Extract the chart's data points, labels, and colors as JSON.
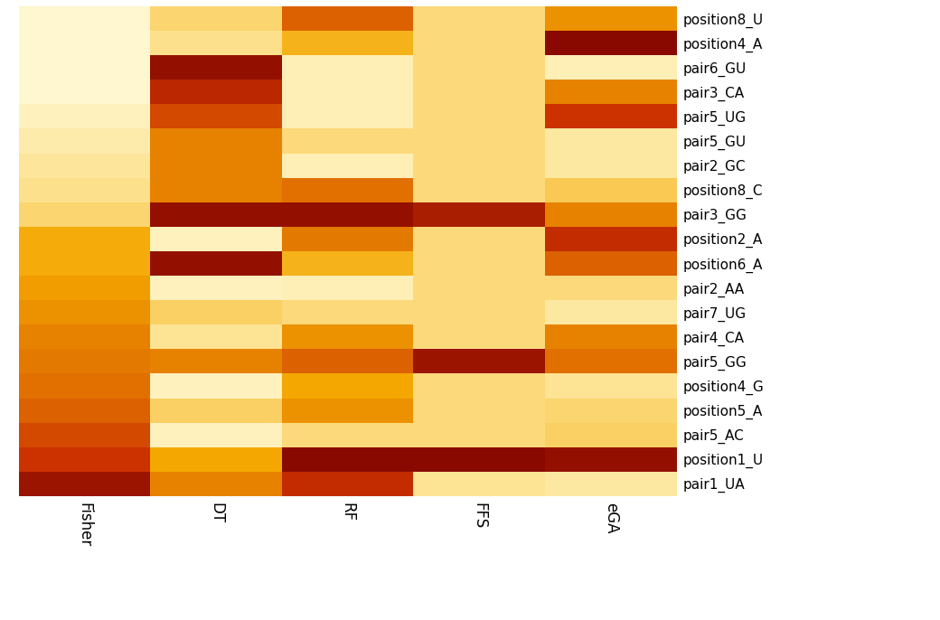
{
  "features": [
    "position8_U",
    "position4_A",
    "pair6_GU",
    "pair3_CA",
    "pair5_UG",
    "pair5_GU",
    "pair2_GC",
    "position8_C",
    "pair3_GG",
    "position2_A",
    "position6_A",
    "pair2_AA",
    "pair7_UG",
    "pair4_CA",
    "pair5_GG",
    "position4_G",
    "position5_A",
    "pair5_AC",
    "position1_U",
    "pair1_UA"
  ],
  "methods": [
    "Fisher",
    "DT",
    "RF",
    "FFS",
    "eGA"
  ],
  "data": [
    [
      0.05,
      0.3,
      0.65,
      0.28,
      0.55
    ],
    [
      0.05,
      0.25,
      0.45,
      0.28,
      0.95
    ],
    [
      0.05,
      0.92,
      0.12,
      0.28,
      0.12
    ],
    [
      0.05,
      0.8,
      0.12,
      0.28,
      0.58
    ],
    [
      0.1,
      0.7,
      0.12,
      0.28,
      0.75
    ],
    [
      0.15,
      0.58,
      0.28,
      0.28,
      0.18
    ],
    [
      0.2,
      0.58,
      0.12,
      0.28,
      0.18
    ],
    [
      0.25,
      0.58,
      0.62,
      0.28,
      0.35
    ],
    [
      0.3,
      0.92,
      0.92,
      0.85,
      0.58
    ],
    [
      0.48,
      0.1,
      0.6,
      0.28,
      0.78
    ],
    [
      0.48,
      0.92,
      0.45,
      0.28,
      0.65
    ],
    [
      0.52,
      0.1,
      0.12,
      0.28,
      0.28
    ],
    [
      0.55,
      0.32,
      0.28,
      0.28,
      0.18
    ],
    [
      0.58,
      0.22,
      0.55,
      0.28,
      0.58
    ],
    [
      0.6,
      0.58,
      0.65,
      0.9,
      0.62
    ],
    [
      0.62,
      0.1,
      0.5,
      0.28,
      0.22
    ],
    [
      0.65,
      0.32,
      0.55,
      0.28,
      0.3
    ],
    [
      0.7,
      0.1,
      0.28,
      0.28,
      0.32
    ],
    [
      0.75,
      0.5,
      0.95,
      0.95,
      0.92
    ],
    [
      0.9,
      0.58,
      0.78,
      0.22,
      0.18
    ]
  ],
  "cmap_colors": [
    "#fffde0",
    "#fde08a",
    "#f5a800",
    "#cc3300",
    "#7a0000"
  ],
  "figsize": [
    10.4,
    6.86
  ],
  "dpi": 100
}
